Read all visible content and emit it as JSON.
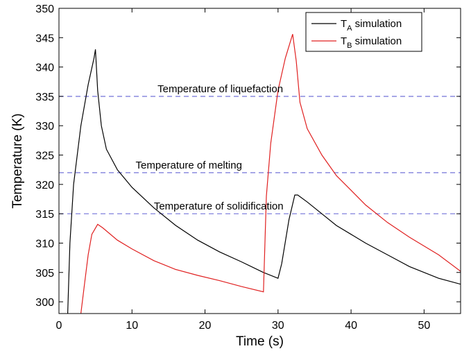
{
  "chart_data": {
    "type": "line",
    "xlabel": "Time (s)",
    "ylabel": "Temperature (K)",
    "xlim": [
      0,
      55
    ],
    "ylim": [
      298,
      350
    ],
    "xticks": [
      0,
      10,
      20,
      30,
      40,
      50
    ],
    "yticks": [
      300,
      305,
      310,
      315,
      320,
      325,
      330,
      335,
      340,
      345,
      350
    ],
    "grid": false,
    "legend_position": "top-right",
    "series": [
      {
        "name_main": "T",
        "name_sub": "A",
        "name_rest": " simulation",
        "color": "#000000",
        "points": [
          [
            1.2,
            298
          ],
          [
            1.5,
            310
          ],
          [
            2,
            320
          ],
          [
            3,
            330
          ],
          [
            4,
            337
          ],
          [
            4.8,
            341.5
          ],
          [
            5,
            343
          ],
          [
            5.3,
            336
          ],
          [
            5.8,
            330
          ],
          [
            6.5,
            326
          ],
          [
            8,
            322.5
          ],
          [
            10,
            319.5
          ],
          [
            13,
            316
          ],
          [
            16,
            313
          ],
          [
            19,
            310.5
          ],
          [
            22,
            308.5
          ],
          [
            25,
            306.8
          ],
          [
            28,
            305
          ],
          [
            30,
            304
          ],
          [
            30.5,
            306.5
          ],
          [
            31.5,
            314
          ],
          [
            32.3,
            318.2
          ],
          [
            32.7,
            318.2
          ],
          [
            34,
            317
          ],
          [
            36,
            315
          ],
          [
            38,
            313
          ],
          [
            40,
            311.5
          ],
          [
            42,
            310
          ],
          [
            45,
            308
          ],
          [
            48,
            306
          ],
          [
            52,
            304
          ],
          [
            55,
            303
          ]
        ]
      },
      {
        "name_main": "T",
        "name_sub": "B",
        "name_rest": " simulation",
        "color": "#e02020",
        "points": [
          [
            3,
            298
          ],
          [
            3.5,
            303
          ],
          [
            4,
            308
          ],
          [
            4.5,
            311.5
          ],
          [
            5.3,
            313.2
          ],
          [
            6,
            312.6
          ],
          [
            8,
            310.5
          ],
          [
            10,
            309
          ],
          [
            13,
            307
          ],
          [
            16,
            305.5
          ],
          [
            19,
            304.5
          ],
          [
            22,
            303.6
          ],
          [
            25,
            302.6
          ],
          [
            28,
            301.7
          ],
          [
            28.4,
            318
          ],
          [
            29,
            327
          ],
          [
            30,
            336
          ],
          [
            31,
            341.5
          ],
          [
            32,
            345.6
          ],
          [
            32.5,
            341
          ],
          [
            33,
            334
          ],
          [
            34,
            329.5
          ],
          [
            36,
            325
          ],
          [
            38,
            321.5
          ],
          [
            40,
            319
          ],
          [
            42,
            316.5
          ],
          [
            45,
            313.5
          ],
          [
            48,
            311
          ],
          [
            52,
            308
          ],
          [
            55,
            305.2
          ]
        ]
      }
    ],
    "reference_lines": [
      {
        "y": 335,
        "label": "Temperature of liquefaction",
        "label_x": 13.5
      },
      {
        "y": 322,
        "label": "Temperature of melting",
        "label_x": 10.5
      },
      {
        "y": 315,
        "label": "Temperature of solidification",
        "label_x": 13
      }
    ],
    "reference_line_color": "#7f7fdc"
  }
}
